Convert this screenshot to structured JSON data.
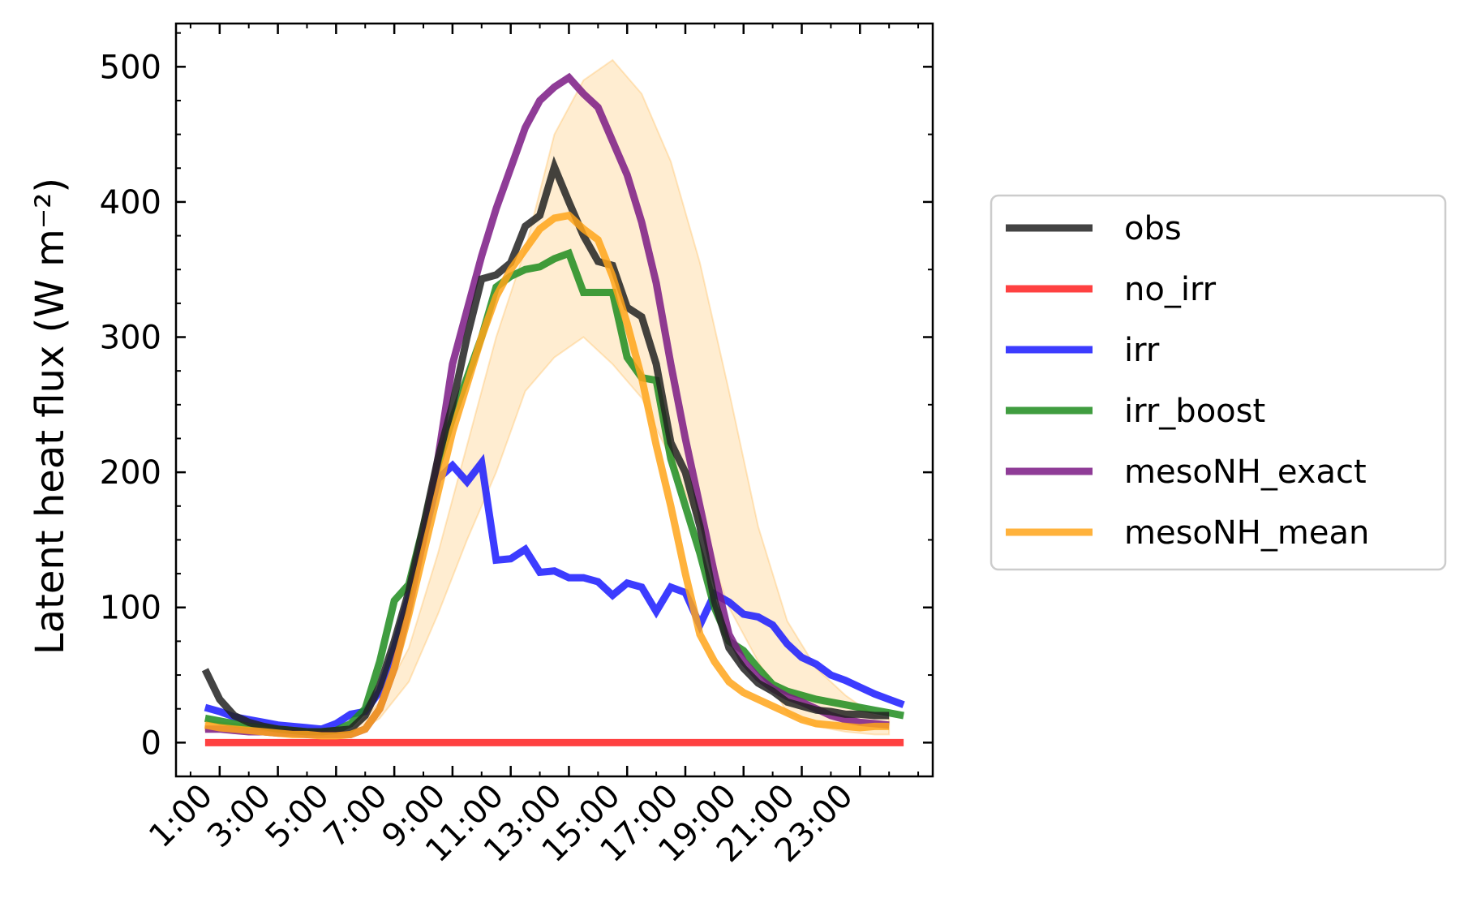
{
  "chart_data": {
    "type": "line",
    "ylabel": "Latent heat flux (W m⁻²)",
    "xlabel": "",
    "title": "",
    "x_tick_labels": [
      "1:00",
      "3:00",
      "5:00",
      "7:00",
      "9:00",
      "11:00",
      "13:00",
      "15:00",
      "17:00",
      "19:00",
      "21:00",
      "23:00"
    ],
    "y_ticks": [
      0,
      100,
      200,
      300,
      400,
      500
    ],
    "ylim": [
      -25,
      532
    ],
    "grid": false,
    "legend_position": "outside right",
    "series": [
      {
        "name": "obs",
        "color": "#222222",
        "x": [
          0.5,
          1,
          1.5,
          2,
          2.5,
          3,
          3.5,
          4,
          4.5,
          5,
          5.5,
          6,
          6.5,
          7,
          7.5,
          8,
          8.5,
          9,
          9.5,
          10,
          10.5,
          11,
          11.5,
          12,
          12.5,
          13,
          13.5,
          14,
          14.5,
          15,
          15.5,
          16,
          16.5,
          17,
          17.5,
          18,
          18.5,
          19,
          19.5,
          20,
          20.5,
          21,
          21.5,
          22,
          22.5,
          23,
          23.5,
          24
        ],
        "values": [
          54,
          32,
          20,
          15,
          12,
          10,
          9,
          8,
          8,
          9,
          10,
          20,
          42,
          75,
          112,
          160,
          210,
          250,
          300,
          343,
          346,
          355,
          382,
          390,
          426,
          400,
          375,
          356,
          353,
          322,
          315,
          280,
          222,
          200,
          160,
          105,
          70,
          55,
          44,
          38,
          30,
          27,
          24,
          23,
          21,
          21,
          20,
          20
        ]
      },
      {
        "name": "no_irr",
        "color": "#ff2020",
        "x": [
          0.5,
          24.5
        ],
        "values": [
          0,
          0
        ]
      },
      {
        "name": "irr",
        "color": "#1a1aff",
        "x": [
          0.5,
          1,
          1.5,
          2,
          2.5,
          3,
          3.5,
          4,
          4.5,
          5,
          5.5,
          6,
          6.5,
          7,
          7.5,
          8,
          8.5,
          9,
          9.5,
          10,
          10.5,
          11,
          11.5,
          12,
          12.5,
          13,
          13.5,
          14,
          14.5,
          15,
          15.5,
          16,
          16.5,
          17,
          17.5,
          18,
          18.5,
          19,
          19.5,
          20,
          20.5,
          21,
          21.5,
          22,
          22.5,
          23,
          23.5,
          24,
          24.5
        ],
        "values": [
          26,
          23,
          19,
          17,
          15,
          13,
          12,
          11,
          10,
          14,
          21,
          23,
          38,
          70,
          108,
          150,
          195,
          205,
          193,
          207,
          135,
          136,
          143,
          126,
          127,
          122,
          122,
          119,
          109,
          118,
          115,
          97,
          115,
          111,
          87,
          110,
          104,
          95,
          93,
          87,
          73,
          63,
          58,
          50,
          46,
          41,
          36,
          32,
          28
        ]
      },
      {
        "name": "irr_boost",
        "color": "#1e8c1e",
        "x": [
          0.5,
          1,
          1.5,
          2,
          2.5,
          3,
          3.5,
          4,
          4.5,
          5,
          5.5,
          6,
          6.5,
          7,
          7.5,
          8,
          8.5,
          9,
          9.5,
          10,
          10.5,
          11,
          11.5,
          12,
          12.5,
          13,
          13.5,
          14,
          14.5,
          15,
          15.5,
          16,
          16.5,
          17,
          17.5,
          18,
          18.5,
          19,
          19.5,
          20,
          20.5,
          21,
          21.5,
          22,
          22.5,
          23,
          23.5,
          24,
          24.5
        ],
        "values": [
          18,
          16,
          14,
          12,
          11,
          10,
          9,
          8,
          8,
          9,
          14,
          25,
          60,
          105,
          117,
          160,
          205,
          240,
          270,
          300,
          337,
          345,
          350,
          352,
          358,
          362,
          333,
          333,
          333,
          285,
          270,
          268,
          210,
          175,
          140,
          100,
          75,
          68,
          55,
          43,
          38,
          35,
          32,
          30,
          28,
          26,
          24,
          22,
          20
        ]
      },
      {
        "name": "mesoNH_exact",
        "color": "#7b1a85",
        "x": [
          0.5,
          1,
          1.5,
          2,
          2.5,
          3,
          3.5,
          4,
          4.5,
          5,
          5.5,
          6,
          6.5,
          7,
          7.5,
          8,
          8.5,
          9,
          9.5,
          10,
          10.5,
          11,
          11.5,
          12,
          12.5,
          13,
          13.5,
          14,
          14.5,
          15,
          15.5,
          16,
          16.5,
          17,
          17.5,
          18,
          18.5,
          19,
          19.5,
          20,
          20.5,
          21,
          21.5,
          22,
          22.5,
          23,
          23.5,
          24
        ],
        "values": [
          10,
          10,
          9,
          8,
          8,
          7,
          7,
          6,
          6,
          6,
          6,
          10,
          25,
          55,
          100,
          150,
          210,
          280,
          320,
          360,
          395,
          425,
          455,
          475,
          485,
          492,
          480,
          470,
          445,
          420,
          385,
          340,
          280,
          225,
          175,
          125,
          80,
          60,
          48,
          40,
          34,
          30,
          25,
          20,
          17,
          15,
          14,
          13
        ]
      },
      {
        "name": "mesoNH_mean",
        "color": "#ffa51a",
        "x": [
          0.5,
          1,
          1.5,
          2,
          2.5,
          3,
          3.5,
          4,
          4.5,
          5,
          5.5,
          6,
          6.5,
          7,
          7.5,
          8,
          8.5,
          9,
          9.5,
          10,
          10.5,
          11,
          11.5,
          12,
          12.5,
          13,
          13.5,
          14,
          14.5,
          15,
          15.5,
          16,
          16.5,
          17,
          17.5,
          18,
          18.5,
          19,
          19.5,
          20,
          20.5,
          21,
          21.5,
          22,
          22.5,
          23,
          23.5,
          24
        ],
        "values": [
          13,
          11,
          10,
          9,
          8,
          7,
          6,
          6,
          5,
          5,
          6,
          10,
          25,
          55,
          95,
          140,
          185,
          230,
          265,
          300,
          330,
          350,
          365,
          380,
          388,
          390,
          380,
          372,
          345,
          310,
          270,
          220,
          175,
          125,
          80,
          60,
          45,
          37,
          32,
          27,
          22,
          17,
          14,
          13,
          12,
          11,
          12,
          12
        ]
      }
    ],
    "band": {
      "series": "mesoNH_mean",
      "color": "#ffa51a",
      "x": [
        0.5,
        1.5,
        2.5,
        3.5,
        4.5,
        5.5,
        6.5,
        7.5,
        8.5,
        9.5,
        10.5,
        11.5,
        12.5,
        13.5,
        14.5,
        15.5,
        16.5,
        17.5,
        18.5,
        19.5,
        20.5,
        21.5,
        22.5,
        23.5,
        24
      ],
      "upper": [
        16,
        14,
        12,
        10,
        8,
        8,
        30,
        70,
        140,
        220,
        300,
        365,
        450,
        490,
        505,
        480,
        430,
        355,
        260,
        160,
        90,
        55,
        35,
        20,
        18
      ],
      "lower": [
        9,
        8,
        6,
        5,
        4,
        4,
        18,
        45,
        95,
        150,
        200,
        260,
        285,
        300,
        280,
        255,
        210,
        160,
        100,
        60,
        22,
        12,
        8,
        6,
        6
      ]
    }
  }
}
